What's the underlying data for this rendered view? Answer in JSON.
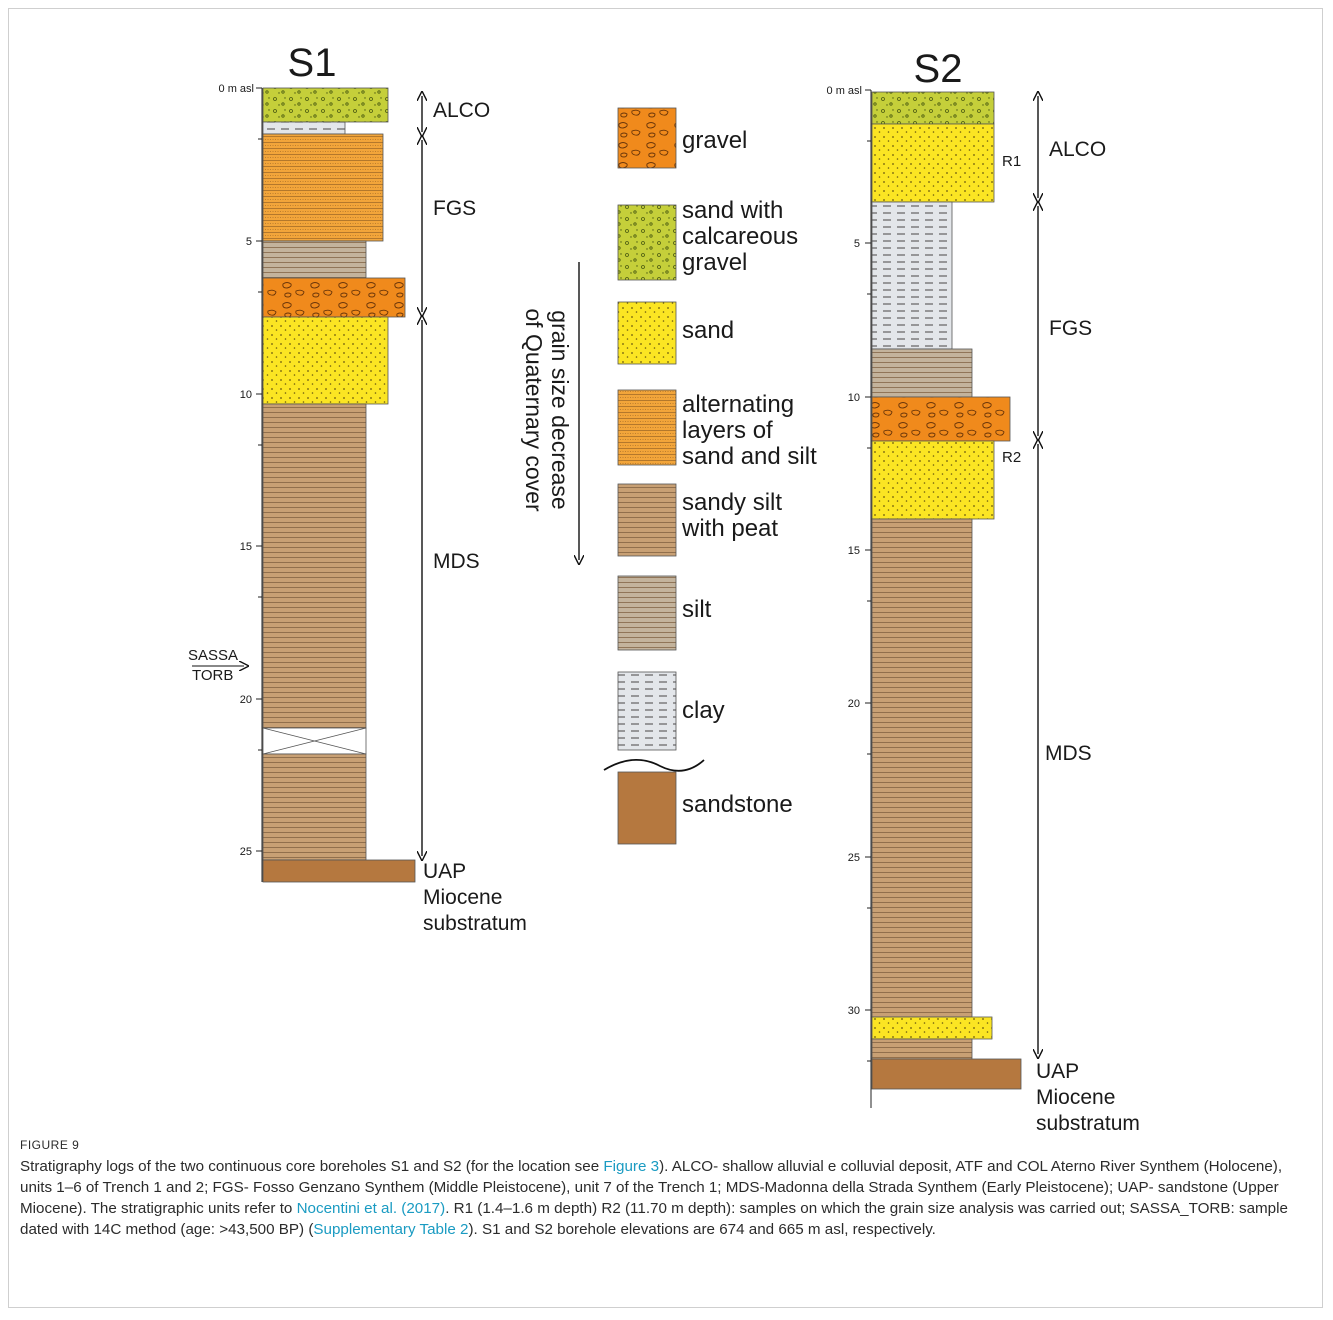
{
  "logs": {
    "s1": {
      "title": "S1",
      "top_label": "0 m asl",
      "depth_labels": [
        "5",
        "10",
        "15",
        "20",
        "25"
      ],
      "units": [
        "ALCO",
        "FGS",
        "MDS"
      ],
      "uap": [
        "UAP",
        "Miocene",
        "substratum"
      ],
      "sample": [
        "SASSA",
        "TORB"
      ]
    },
    "s2": {
      "title": "S2",
      "top_label": "0 m asl",
      "depth_labels": [
        "5",
        "10",
        "15",
        "20",
        "25",
        "30"
      ],
      "units": [
        "ALCO",
        "FGS",
        "MDS"
      ],
      "uap": [
        "UAP",
        "Miocene",
        "substratum"
      ],
      "samples": [
        "R1",
        "R2"
      ]
    }
  },
  "grain_arrow": [
    "grain size decrease",
    "of Quaternary cover"
  ],
  "legend": [
    {
      "id": "gravel",
      "lines": [
        "gravel"
      ]
    },
    {
      "id": "sand-calc",
      "lines": [
        "sand with",
        "calcareous",
        "gravel"
      ]
    },
    {
      "id": "sand",
      "lines": [
        "sand"
      ]
    },
    {
      "id": "alternating",
      "lines": [
        "alternating",
        "layers of",
        "sand and silt"
      ]
    },
    {
      "id": "sandy-silt",
      "lines": [
        "sandy silt",
        "with peat"
      ]
    },
    {
      "id": "silt",
      "lines": [
        "silt"
      ]
    },
    {
      "id": "clay",
      "lines": [
        "clay"
      ]
    },
    {
      "id": "sandstone",
      "lines": [
        "sandstone"
      ]
    }
  ],
  "colors": {
    "gravel": "#f08a1c",
    "sand_calc": "#c5cf3a",
    "sand": "#fbe523",
    "alternating": "#f2a53a",
    "sandy_silt": "#c8a074",
    "silt": "#c3b39c",
    "clay": "#e3e6ea",
    "sandstone": "#b5783f"
  },
  "caption": {
    "label": "FIGURE 9",
    "p1": "Stratigraphy logs of the two continuous core boreholes S1 and S2 (for the location see ",
    "link1": "Figure 3",
    "p2": "). ALCO- shallow alluvial e colluvial deposit, ATF and COL Aterno River Synthem (Holocene), units 1–6 of Trench 1 and 2; FGS- Fosso Genzano Synthem (Middle Pleistocene), unit 7 of the Trench 1; MDS-Madonna della Strada Synthem (Early Pleistocene); UAP- sandstone (Upper Miocene). The stratigraphic units refer to ",
    "link2": "Nocentini et al. (2017)",
    "p3": ". R1 (1.4–1.6 m depth) R2 (11.70 m depth): samples on which the grain size analysis was carried out; SASSA_TORB: sample dated with 14C method (age: >43,500 BP) (",
    "link3": "Supplementary Table 2",
    "p4": "). S1 and S2 borehole elevations are 674 and 665 m asl, respectively."
  }
}
